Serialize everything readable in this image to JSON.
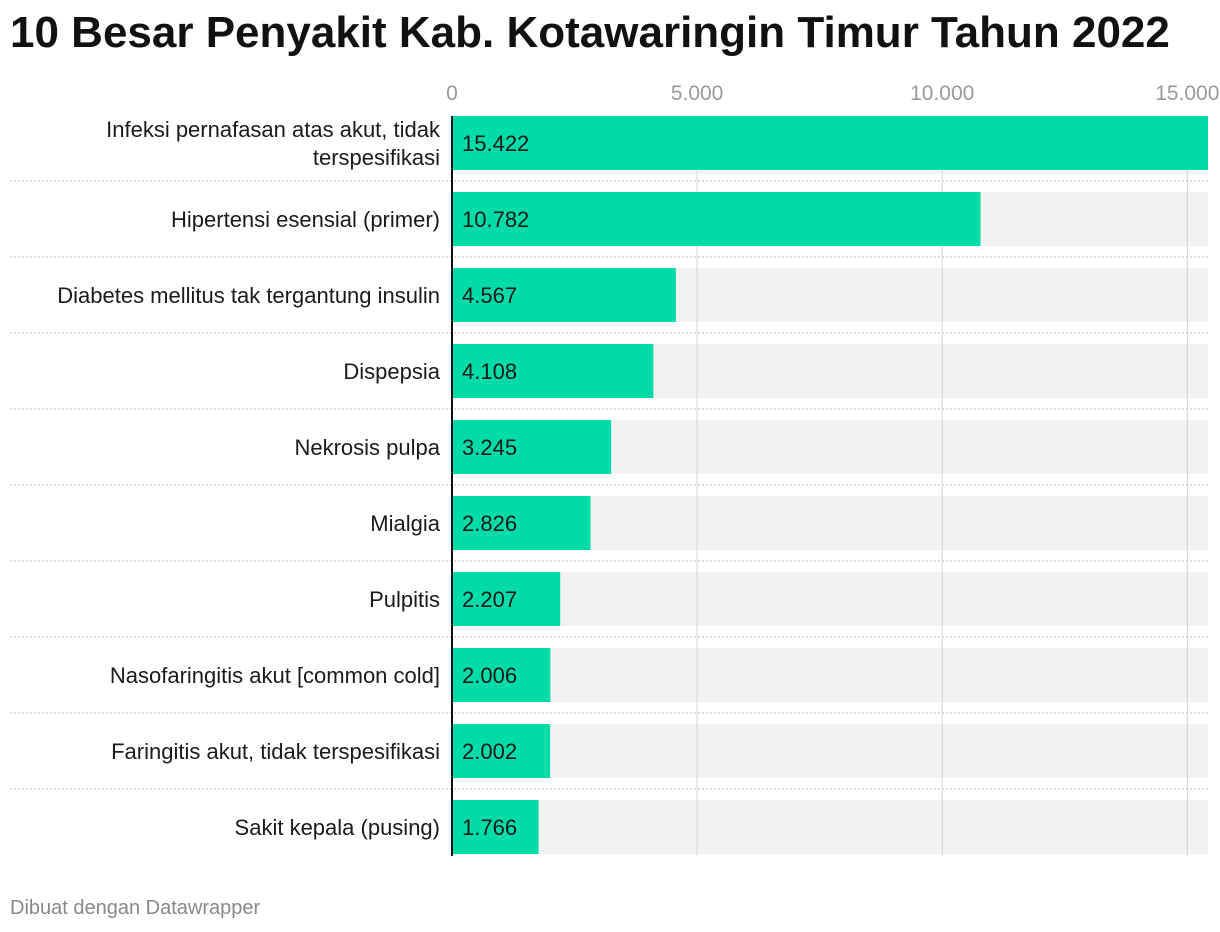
{
  "title": "10 Besar Penyakit Kab. Kotawaringin Timur Tahun 2022",
  "footer": "Dibuat dengan Datawrapper",
  "colors": {
    "bar": "#00dca8",
    "track": "#f2f2f2",
    "grid": "#d2d2d2",
    "tick": "#9a9a9a",
    "axis": "#111111"
  },
  "chart_data": {
    "type": "bar",
    "orientation": "horizontal",
    "title": "10 Besar Penyakit Kab. Kotawaringin Timur Tahun 2022",
    "xlim": [
      0,
      15422
    ],
    "ticks": [
      0,
      5000,
      10000,
      15000
    ],
    "tick_labels": [
      "0",
      "5.000",
      "10.000",
      "15.000"
    ],
    "grid": true,
    "categories": [
      [
        "Infeksi pernafasan atas akut, tidak",
        "terspesifikasi"
      ],
      [
        "Hipertensi esensial (primer)"
      ],
      [
        "Diabetes mellitus tak tergantung insulin"
      ],
      [
        "Dispepsia"
      ],
      [
        "Nekrosis pulpa"
      ],
      [
        "Mialgia"
      ],
      [
        "Pulpitis"
      ],
      [
        "Nasofaringitis akut [common cold]"
      ],
      [
        "Faringitis akut, tidak terspesifikasi"
      ],
      [
        "Sakit kepala (pusing)"
      ]
    ],
    "values": [
      15422,
      10782,
      4567,
      4108,
      3245,
      2826,
      2207,
      2006,
      2002,
      1766
    ],
    "value_labels": [
      "15.422",
      "10.782",
      "4.567",
      "4.108",
      "3.245",
      "2.826",
      "2.207",
      "2.006",
      "2.002",
      "1.766"
    ]
  }
}
